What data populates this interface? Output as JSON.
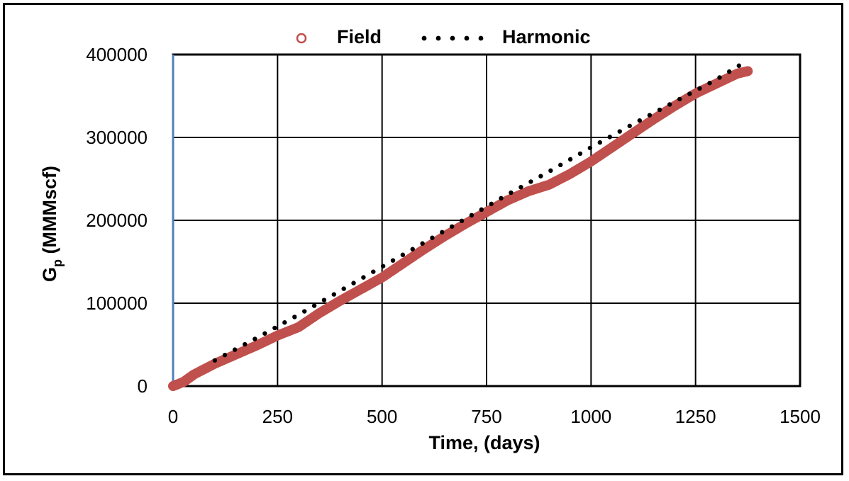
{
  "chart_data": {
    "type": "scatter",
    "xlabel": "Time, (days)",
    "ylabel_main": "G",
    "ylabel_sub": "p",
    "ylabel_rest": " (MMMscf)",
    "xlim": [
      0,
      1500
    ],
    "ylim": [
      0,
      400000
    ],
    "x_ticks": [
      "0",
      "250",
      "500",
      "750",
      "1000",
      "1250",
      "1500"
    ],
    "y_ticks": [
      "0",
      "100000",
      "200000",
      "300000",
      "400000"
    ],
    "grid": true,
    "legend_position": "top",
    "series": [
      {
        "name": "Field",
        "marker": "circle-open",
        "color": "#c0504d",
        "points": [
          [
            0,
            0
          ],
          [
            25,
            5000
          ],
          [
            50,
            14000
          ],
          [
            100,
            27000
          ],
          [
            150,
            38000
          ],
          [
            200,
            49000
          ],
          [
            250,
            61000
          ],
          [
            300,
            71000
          ],
          [
            350,
            88000
          ],
          [
            400,
            103000
          ],
          [
            450,
            117000
          ],
          [
            500,
            131000
          ],
          [
            550,
            148000
          ],
          [
            600,
            165000
          ],
          [
            650,
            181000
          ],
          [
            700,
            196000
          ],
          [
            750,
            210000
          ],
          [
            800,
            224000
          ],
          [
            850,
            235000
          ],
          [
            900,
            243000
          ],
          [
            950,
            256000
          ],
          [
            1000,
            271000
          ],
          [
            1050,
            288000
          ],
          [
            1100,
            305000
          ],
          [
            1150,
            322000
          ],
          [
            1200,
            338000
          ],
          [
            1250,
            353000
          ],
          [
            1300,
            365000
          ],
          [
            1350,
            377000
          ],
          [
            1375,
            380000
          ]
        ]
      },
      {
        "name": "Harmonic",
        "style": "dotted",
        "color": "#000000",
        "points": [
          [
            100,
            31000
          ],
          [
            200,
            58000
          ],
          [
            300,
            86000
          ],
          [
            400,
            115000
          ],
          [
            500,
            144000
          ],
          [
            600,
            173000
          ],
          [
            700,
            202000
          ],
          [
            800,
            231000
          ],
          [
            900,
            259000
          ],
          [
            1000,
            288000
          ],
          [
            1100,
            316000
          ],
          [
            1200,
            343000
          ],
          [
            1300,
            370000
          ],
          [
            1365,
            390000
          ]
        ]
      }
    ]
  }
}
